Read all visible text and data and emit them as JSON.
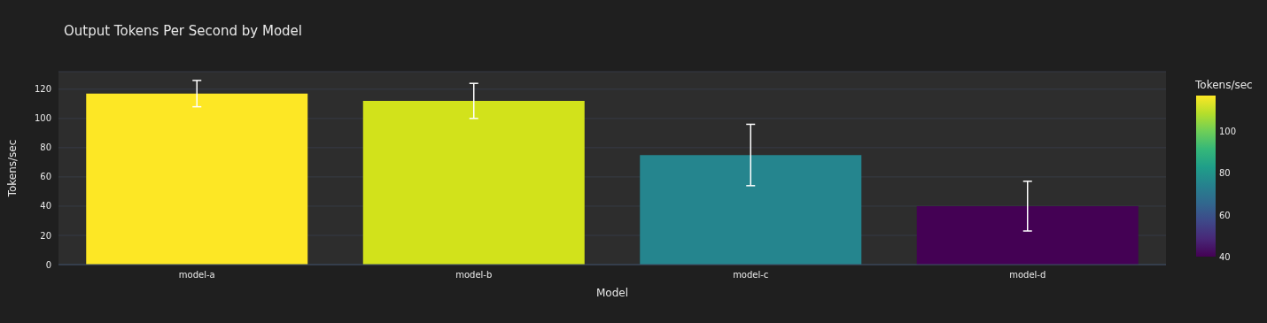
{
  "chart_data": {
    "type": "bar",
    "title": "Output Tokens Per Second by Model",
    "xlabel": "Model",
    "ylabel": "Tokens/sec",
    "clabel": "Tokens/sec",
    "categories": [
      "model-a",
      "model-b",
      "model-c",
      "model-d"
    ],
    "values": [
      117,
      112,
      75,
      40
    ],
    "errors": [
      9,
      12,
      21,
      17
    ],
    "colors": [
      "#fde725",
      "#d2e21b",
      "#25858e",
      "#440154"
    ],
    "ylim": [
      0,
      132
    ],
    "yticks": [
      0,
      20,
      40,
      60,
      80,
      100,
      120
    ],
    "clim": [
      40,
      117
    ],
    "cticks": [
      40,
      60,
      80,
      100
    ],
    "grid": "y"
  }
}
